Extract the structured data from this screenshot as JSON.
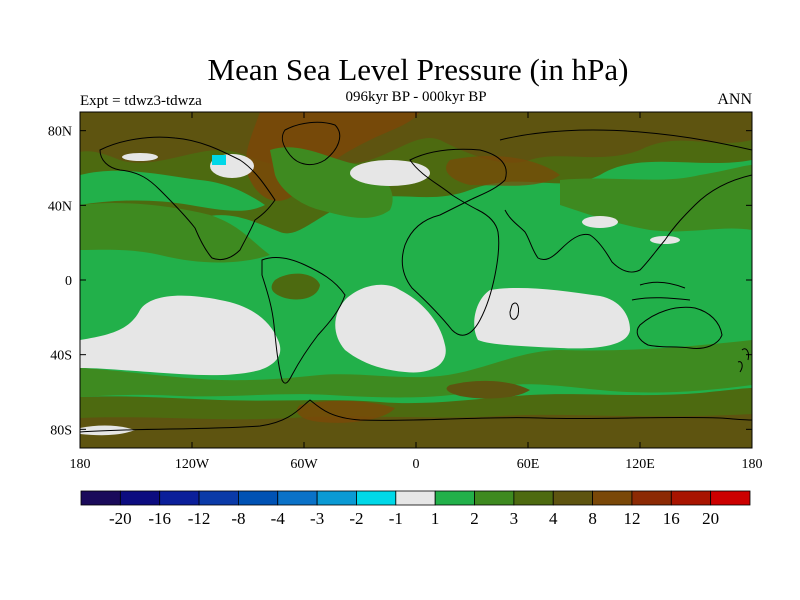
{
  "title": "Mean Sea Level Pressure (in hPa)",
  "subtitle": "096kyr BP - 000kyr BP",
  "experiment": "Expt = tdwz3-tdwza",
  "season": "ANN",
  "x_ticks": [
    "180",
    "120W",
    "60W",
    "0",
    "60E",
    "120E",
    "180"
  ],
  "y_ticks": [
    "80N",
    "40N",
    "0",
    "40S",
    "80S"
  ],
  "colorbar": {
    "colors": [
      "#1a0a5a",
      "#0c0c80",
      "#0b1f9a",
      "#0a3aa8",
      "#0052b4",
      "#0a72c8",
      "#0a9ad4",
      "#00d8e8",
      "#e6e6e6",
      "#22b04a",
      "#3e8a20",
      "#4d6a10",
      "#5e5410",
      "#7a4808",
      "#8c2a04",
      "#a81400",
      "#cc0000"
    ],
    "labels": [
      "-20",
      "-16",
      "-12",
      "-8",
      "-4",
      "-3",
      "-2",
      "-1",
      "1",
      "2",
      "3",
      "4",
      "8",
      "12",
      "16",
      "20"
    ]
  },
  "colors": {
    "light_gray": "#e6e6e6",
    "green": "#22b04a",
    "mid_green": "#3e8a20",
    "olive": "#4d6a10",
    "brown": "#5e5410",
    "dark_brown": "#7a4808",
    "cyan": "#00d8e8"
  }
}
